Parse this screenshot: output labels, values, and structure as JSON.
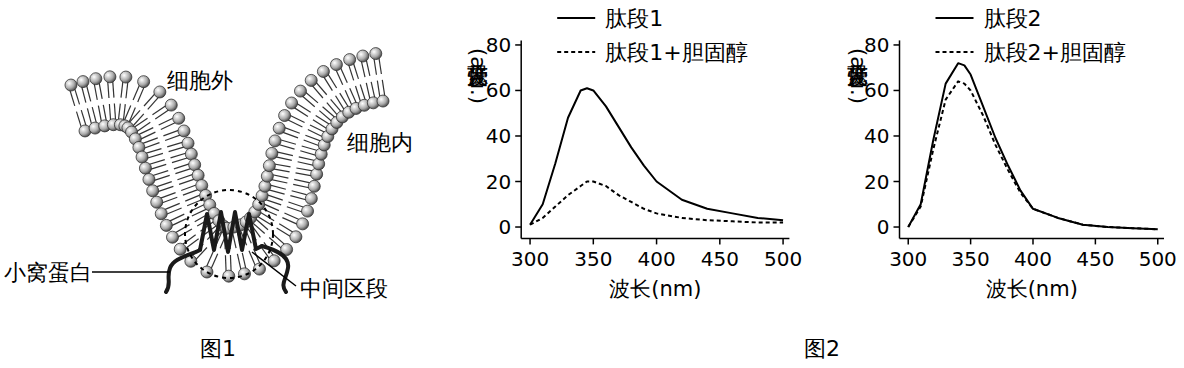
{
  "figure1": {
    "labels": {
      "outside": "细胞外",
      "inside": "细胞内",
      "caveolin": "小窝蛋白",
      "middle": "中间区段"
    },
    "caption": "图1"
  },
  "figure2_caption": "图2",
  "chart_data": [
    {
      "type": "line",
      "x_label": "波长(nm)",
      "y_label": "荧光强度(a.u.)",
      "xlim": [
        293,
        505
      ],
      "ylim": [
        -5,
        82
      ],
      "xticks": [
        300,
        350,
        400,
        450,
        500
      ],
      "yticks": [
        0,
        20,
        40,
        60,
        80
      ],
      "legend": "top",
      "x": [
        300,
        310,
        320,
        330,
        340,
        345,
        350,
        360,
        370,
        380,
        390,
        400,
        420,
        440,
        460,
        480,
        500
      ],
      "series": [
        {
          "name": "肽段1",
          "color": "#000000",
          "line_style": "solid",
          "values": [
            1,
            10,
            28,
            48,
            60,
            61,
            60,
            53,
            44,
            35,
            27,
            20,
            12,
            8,
            6,
            4,
            3
          ]
        },
        {
          "name": "肽段1+胆固醇",
          "color": "#000000",
          "line_style": "dashed",
          "values": [
            1,
            4,
            9,
            14,
            18,
            20,
            20,
            18,
            14,
            11,
            8,
            6,
            4,
            3,
            2.5,
            2,
            2
          ]
        }
      ]
    },
    {
      "type": "line",
      "x_label": "波长(nm)",
      "y_label": "荧光强度(a.u.)",
      "xlim": [
        293,
        505
      ],
      "ylim": [
        -5,
        82
      ],
      "xticks": [
        300,
        350,
        400,
        450,
        500
      ],
      "yticks": [
        0,
        20,
        40,
        60,
        80
      ],
      "legend": "top",
      "x": [
        300,
        310,
        320,
        330,
        340,
        345,
        350,
        360,
        370,
        380,
        390,
        400,
        420,
        440,
        460,
        480,
        500
      ],
      "series": [
        {
          "name": "肽段2",
          "color": "#000000",
          "line_style": "solid",
          "values": [
            0,
            10,
            38,
            63,
            72,
            71,
            67,
            53,
            39,
            27,
            16,
            8,
            4,
            1,
            0,
            -0.5,
            -1
          ]
        },
        {
          "name": "肽段2+胆固醇",
          "color": "#000000",
          "line_style": "dashed",
          "values": [
            0,
            9,
            34,
            56,
            64,
            63,
            60,
            49,
            36,
            25,
            15,
            8,
            4,
            1,
            0,
            -0.5,
            -1
          ]
        }
      ]
    }
  ]
}
